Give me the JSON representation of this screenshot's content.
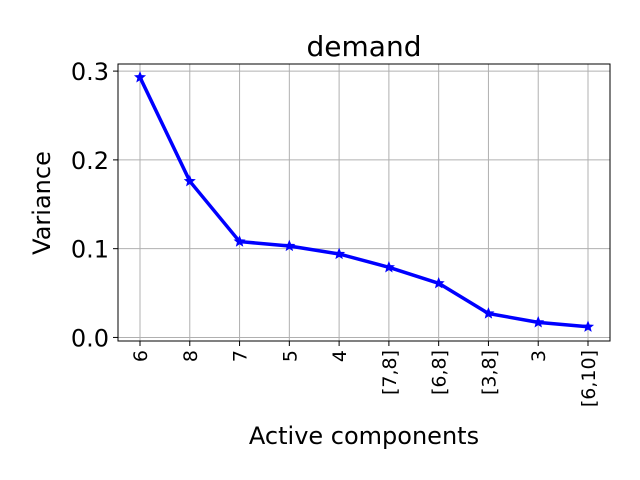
{
  "chart_data": {
    "type": "line",
    "title": "demand",
    "xlabel": "Active components",
    "ylabel": "Variance",
    "categories": [
      "6",
      "8",
      "7",
      "5",
      "4",
      "[7,8]",
      "[6,8]",
      "[3,8]",
      "3",
      "[6,10]"
    ],
    "series": [
      {
        "values": [
          0.293,
          0.176,
          0.108,
          0.103,
          0.094,
          0.079,
          0.061,
          0.027,
          0.017,
          0.012
        ],
        "color": "#0000ff",
        "marker": "star"
      }
    ],
    "ylim": [
      -0.004,
      0.308
    ],
    "yticks": [
      0.0,
      0.1,
      0.2,
      0.3
    ],
    "ytick_labels": [
      "0.0",
      "0.1",
      "0.2",
      "0.3"
    ],
    "grid": true,
    "grid_color": "#b0b0b0"
  }
}
